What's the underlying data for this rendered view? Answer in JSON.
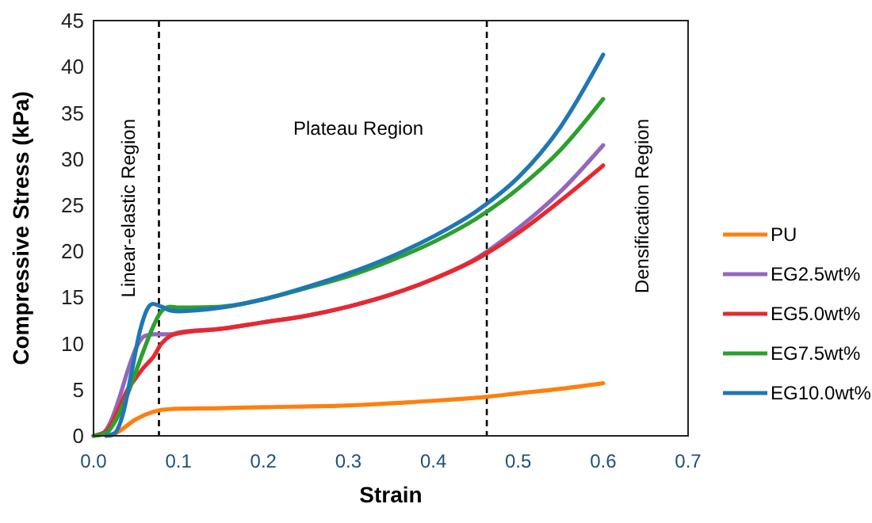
{
  "chart_data": {
    "type": "line",
    "xlabel": "Strain",
    "ylabel": "Compressive Stress (kPa)",
    "xlim": [
      0,
      0.7
    ],
    "xticks": [
      {
        "value": 0,
        "label": "0.0"
      },
      0.1,
      0.2,
      0.3,
      0.4,
      0.5,
      0.6,
      0.7
    ],
    "ylim": [
      0,
      45
    ],
    "yticks": [
      0,
      5,
      10,
      15,
      20,
      25,
      30,
      35,
      40,
      45
    ],
    "grid": false,
    "legend": "right",
    "marker": "none",
    "line_style": "solid",
    "annotations": [
      "Linear-elastic Region",
      "Plateau Region",
      "Densification Region"
    ],
    "ref_lines": [
      {
        "axis": "x",
        "value": 0.077,
        "line_style": "dashed",
        "color": "#000000"
      },
      {
        "axis": "x",
        "value": 0.463,
        "line_style": "dashed",
        "color": "#000000"
      }
    ],
    "series": [
      {
        "name": "PU",
        "color": "#ff7f0e",
        "x": [
          0.02,
          0.03,
          0.05,
          0.07,
          0.09,
          0.15,
          0.2,
          0.3,
          0.4,
          0.46,
          0.5,
          0.55,
          0.6
        ],
        "values": [
          0,
          0.5,
          1.8,
          2.6,
          2.9,
          3.0,
          3.1,
          3.3,
          3.8,
          4.2,
          4.6,
          5.1,
          5.7
        ]
      },
      {
        "name": "EG2.5wt%",
        "color": "#9467bd",
        "x": [
          0,
          0.01,
          0.02,
          0.03,
          0.04,
          0.05,
          0.06,
          0.07,
          0.09,
          0.1,
          0.15,
          0.2,
          0.25,
          0.3,
          0.35,
          0.4,
          0.45,
          0.5,
          0.55,
          0.6
        ],
        "values": [
          0,
          0.2,
          1.5,
          4,
          7,
          9.5,
          10.8,
          11,
          11,
          11.2,
          11.6,
          12.3,
          13,
          14,
          15.3,
          17,
          19.2,
          22.5,
          26.5,
          31.5
        ]
      },
      {
        "name": "EG5.0wt%",
        "color": "#e8282e",
        "x": [
          0,
          0.015,
          0.03,
          0.04,
          0.05,
          0.06,
          0.07,
          0.08,
          0.09,
          0.1,
          0.15,
          0.2,
          0.25,
          0.3,
          0.35,
          0.4,
          0.45,
          0.5,
          0.55,
          0.6
        ],
        "values": [
          0,
          0.5,
          3,
          5,
          6.3,
          7.5,
          8.5,
          10,
          10.8,
          11.1,
          11.6,
          12.3,
          13,
          14,
          15.3,
          17,
          19.1,
          22,
          25.5,
          29.3
        ]
      },
      {
        "name": "EG7.5wt%",
        "color": "#2ca02c",
        "x": [
          0,
          0.015,
          0.025,
          0.04,
          0.05,
          0.06,
          0.07,
          0.08,
          0.09,
          0.1,
          0.15,
          0.2,
          0.25,
          0.3,
          0.35,
          0.4,
          0.45,
          0.5,
          0.55,
          0.6
        ],
        "values": [
          0,
          0.3,
          1.5,
          4.5,
          7,
          9.5,
          11.8,
          13.5,
          14,
          13.9,
          14,
          14.8,
          16,
          17.3,
          19,
          21,
          23.5,
          26.8,
          31,
          36.5
        ]
      },
      {
        "name": "EG10.0wt%",
        "color": "#1f77b4",
        "x": [
          0.015,
          0.025,
          0.035,
          0.045,
          0.055,
          0.065,
          0.07,
          0.08,
          0.09,
          0.1,
          0.15,
          0.2,
          0.25,
          0.3,
          0.35,
          0.4,
          0.45,
          0.5,
          0.55,
          0.6
        ],
        "values": [
          0,
          0.3,
          2.5,
          7,
          11.5,
          14,
          14.3,
          14,
          13.6,
          13.5,
          13.9,
          14.8,
          16.1,
          17.6,
          19.4,
          21.6,
          24.3,
          28,
          33.5,
          41.3
        ]
      }
    ]
  }
}
